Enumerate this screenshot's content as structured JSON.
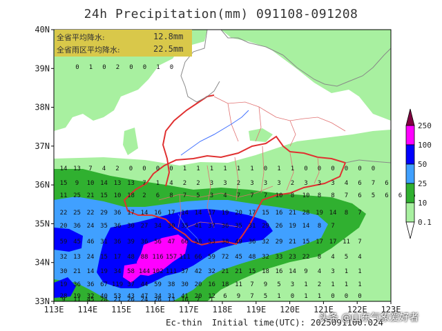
{
  "title": "24h Precipitation(mm) 091108-091208",
  "footer": {
    "model": "Ec-thin",
    "initial_time": "Initial time(UTC): 2025091100.024"
  },
  "watermark": "头条 @山东气象爱好者",
  "info_box": {
    "row1_label": "全省平均降水:",
    "row1_value": "12.8mm",
    "row2_label": "全省雨区平均降水:",
    "row2_value": "22.5mm"
  },
  "axes": {
    "x_ticks": [
      "113E",
      "114E",
      "115E",
      "116E",
      "117E",
      "118E",
      "119E",
      "120E",
      "121E",
      "122E",
      "123E"
    ],
    "y_ticks": [
      "40N",
      "39N",
      "38N",
      "37N",
      "36N",
      "35N",
      "34N",
      "33N"
    ]
  },
  "legend": {
    "labels": [
      "250",
      "100",
      "50",
      "25",
      "10",
      "0.1"
    ],
    "colors": [
      "#800040",
      "#ff00ff",
      "#0000ff",
      "#40a0ff",
      "#30b030",
      "#a8f0a0"
    ]
  },
  "station_values": [
    {
      "v": "0"
    },
    {
      "v": "1"
    },
    {
      "v": "0"
    },
    {
      "v": "2"
    },
    {
      "v": "0"
    },
    {
      "v": "0"
    },
    {
      "v": "1"
    },
    {
      "v": "0"
    },
    {
      "v": "14"
    },
    {
      "v": "13"
    },
    {
      "v": "7"
    },
    {
      "v": "4"
    },
    {
      "v": "2"
    },
    {
      "v": "0"
    },
    {
      "v": "0"
    },
    {
      "v": "0"
    },
    {
      "v": "0"
    },
    {
      "v": "1"
    },
    {
      "v": "1"
    },
    {
      "v": "1"
    },
    {
      "v": "1"
    },
    {
      "v": "1"
    },
    {
      "v": "1"
    },
    {
      "v": "0"
    },
    {
      "v": "1"
    },
    {
      "v": "1"
    },
    {
      "v": "0"
    },
    {
      "v": "0"
    },
    {
      "v": "0"
    },
    {
      "v": "0"
    },
    {
      "v": "0"
    },
    {
      "v": "0"
    },
    {
      "v": "15"
    },
    {
      "v": "9"
    },
    {
      "v": "10"
    },
    {
      "v": "14"
    },
    {
      "v": "13"
    },
    {
      "v": "13"
    },
    {
      "v": "7"
    },
    {
      "v": "1"
    },
    {
      "v": "4"
    },
    {
      "v": "2"
    },
    {
      "v": "2"
    },
    {
      "v": "3"
    },
    {
      "v": "3"
    },
    {
      "v": "2"
    },
    {
      "v": "3"
    },
    {
      "v": "3"
    },
    {
      "v": "3"
    },
    {
      "v": "2"
    },
    {
      "v": "3"
    },
    {
      "v": "3"
    },
    {
      "v": "3"
    },
    {
      "v": "4"
    },
    {
      "v": "6"
    },
    {
      "v": "7"
    },
    {
      "v": "6"
    },
    {
      "v": "11"
    },
    {
      "v": "25"
    },
    {
      "v": "21"
    },
    {
      "v": "15"
    },
    {
      "v": "10"
    },
    {
      "v": "18"
    },
    {
      "v": "2"
    },
    {
      "v": "6"
    },
    {
      "v": "8"
    },
    {
      "v": "7"
    },
    {
      "v": "5"
    },
    {
      "v": "3"
    },
    {
      "v": "4"
    },
    {
      "v": "7"
    },
    {
      "v": "7"
    },
    {
      "v": "7"
    },
    {
      "v": "10"
    },
    {
      "v": "8"
    },
    {
      "v": "10"
    },
    {
      "v": "8"
    },
    {
      "v": "8"
    },
    {
      "v": "7"
    },
    {
      "v": "6"
    },
    {
      "v": "5"
    },
    {
      "v": "6"
    },
    {
      "v": "6"
    },
    {
      "v": "6"
    },
    {
      "v": "22"
    },
    {
      "v": "25"
    },
    {
      "v": "22"
    },
    {
      "v": "29"
    },
    {
      "v": "36"
    },
    {
      "v": "17"
    },
    {
      "v": "14"
    },
    {
      "v": "16"
    },
    {
      "v": "17"
    },
    {
      "v": "14"
    },
    {
      "v": "14"
    },
    {
      "v": "17"
    },
    {
      "v": "19"
    },
    {
      "v": "20"
    },
    {
      "v": "17"
    },
    {
      "v": "15"
    },
    {
      "v": "16"
    },
    {
      "v": "21"
    },
    {
      "v": "28"
    },
    {
      "v": "19"
    },
    {
      "v": "14"
    },
    {
      "v": "8"
    },
    {
      "v": "7"
    },
    {
      "v": "20"
    },
    {
      "v": "36"
    },
    {
      "v": "24"
    },
    {
      "v": "35"
    },
    {
      "v": "36"
    },
    {
      "v": "30"
    },
    {
      "v": "27"
    },
    {
      "v": "34"
    },
    {
      "v": "30"
    },
    {
      "v": "35"
    },
    {
      "v": "41"
    },
    {
      "v": "37"
    },
    {
      "v": "36"
    },
    {
      "v": "35"
    },
    {
      "v": "31"
    },
    {
      "v": "29"
    },
    {
      "v": "26"
    },
    {
      "v": "19"
    },
    {
      "v": "14"
    },
    {
      "v": "8"
    },
    {
      "v": "7"
    },
    {
      "v": "59"
    },
    {
      "v": "45"
    },
    {
      "v": "46"
    },
    {
      "v": "31"
    },
    {
      "v": "36"
    },
    {
      "v": "39"
    },
    {
      "v": "36"
    },
    {
      "v": "56"
    },
    {
      "v": "47"
    },
    {
      "v": "60"
    },
    {
      "v": "58"
    },
    {
      "v": "53"
    },
    {
      "v": "38"
    },
    {
      "v": "49"
    },
    {
      "v": "36"
    },
    {
      "v": "32"
    },
    {
      "v": "29"
    },
    {
      "v": "21"
    },
    {
      "v": "15"
    },
    {
      "v": "17"
    },
    {
      "v": "17"
    },
    {
      "v": "11"
    },
    {
      "v": "7"
    },
    {
      "v": "32"
    },
    {
      "v": "13"
    },
    {
      "v": "24"
    },
    {
      "v": "15"
    },
    {
      "v": "17"
    },
    {
      "v": "48"
    },
    {
      "v": "88"
    },
    {
      "v": "116"
    },
    {
      "v": "157"
    },
    {
      "v": "111"
    },
    {
      "v": "66"
    },
    {
      "v": "59"
    },
    {
      "v": "72"
    },
    {
      "v": "45"
    },
    {
      "v": "48"
    },
    {
      "v": "32"
    },
    {
      "v": "33"
    },
    {
      "v": "23"
    },
    {
      "v": "22"
    },
    {
      "v": "8"
    },
    {
      "v": "4"
    },
    {
      "v": "5"
    },
    {
      "v": "4"
    },
    {
      "v": "30"
    },
    {
      "v": "21"
    },
    {
      "v": "14"
    },
    {
      "v": "19"
    },
    {
      "v": "34"
    },
    {
      "v": "58"
    },
    {
      "v": "144"
    },
    {
      "v": "102"
    },
    {
      "v": "111"
    },
    {
      "v": "37"
    },
    {
      "v": "42"
    },
    {
      "v": "32"
    },
    {
      "v": "21"
    },
    {
      "v": "21"
    },
    {
      "v": "15"
    },
    {
      "v": "18"
    },
    {
      "v": "16"
    },
    {
      "v": "14"
    },
    {
      "v": "9"
    },
    {
      "v": "4"
    },
    {
      "v": "3"
    },
    {
      "v": "1"
    },
    {
      "v": "1"
    },
    {
      "v": "19"
    },
    {
      "v": "36"
    },
    {
      "v": "36"
    },
    {
      "v": "67"
    },
    {
      "v": "119"
    },
    {
      "v": "37"
    },
    {
      "v": "44"
    },
    {
      "v": "59"
    },
    {
      "v": "38"
    },
    {
      "v": "30"
    },
    {
      "v": "20"
    },
    {
      "v": "16"
    },
    {
      "v": "18"
    },
    {
      "v": "11"
    },
    {
      "v": "7"
    },
    {
      "v": "9"
    },
    {
      "v": "5"
    },
    {
      "v": "3"
    },
    {
      "v": "1"
    },
    {
      "v": "2"
    },
    {
      "v": "1"
    },
    {
      "v": "1"
    },
    {
      "v": "1"
    },
    {
      "v": "28"
    },
    {
      "v": "19"
    },
    {
      "v": "32"
    },
    {
      "v": "40"
    },
    {
      "v": "53"
    },
    {
      "v": "43"
    },
    {
      "v": "47"
    },
    {
      "v": "34"
    },
    {
      "v": "31"
    },
    {
      "v": "41"
    },
    {
      "v": "20"
    },
    {
      "v": "12"
    },
    {
      "v": "6"
    },
    {
      "v": "9"
    },
    {
      "v": "7"
    },
    {
      "v": "5"
    },
    {
      "v": "1"
    },
    {
      "v": "0"
    },
    {
      "v": "1"
    },
    {
      "v": "1"
    },
    {
      "v": "0"
    },
    {
      "v": "0"
    },
    {
      "v": "0"
    },
    {
      "v": "9"
    },
    {
      "v": "11"
    },
    {
      "v": "45"
    },
    {
      "v": "28"
    },
    {
      "v": "21"
    },
    {
      "v": "26"
    },
    {
      "v": "24"
    },
    {
      "v": "26"
    },
    {
      "v": "13"
    },
    {
      "v": "16"
    },
    {
      "v": "7"
    },
    {
      "v": "1"
    }
  ]
}
